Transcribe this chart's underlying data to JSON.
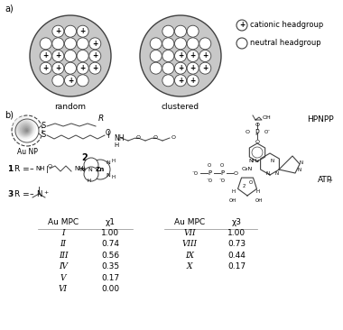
{
  "title_a": "a)",
  "title_b": "b)",
  "random_label": "random",
  "clustered_label": "clustered",
  "legend_cationic": "cationic headgroup",
  "legend_neutral": "neutral headgroup",
  "table_header_left": [
    "Au MPC",
    "χ1"
  ],
  "table_rows_left": [
    [
      "I",
      "1.00"
    ],
    [
      "II",
      "0.74"
    ],
    [
      "III",
      "0.56"
    ],
    [
      "IV",
      "0.35"
    ],
    [
      "V",
      "0.17"
    ],
    [
      "VI",
      "0.00"
    ]
  ],
  "table_header_right": [
    "Au MPC",
    "χ3"
  ],
  "table_rows_right": [
    [
      "VII",
      "1.00"
    ],
    [
      "VIII",
      "0.73"
    ],
    [
      "IX",
      "0.44"
    ],
    [
      "X",
      "0.17"
    ]
  ],
  "au_np_label": "Au NP",
  "compound2_label": "2",
  "hpnpp_label": "HPNPP",
  "atpf_label": "ATP",
  "bg_color": "#ffffff",
  "text_color": "#000000",
  "gray_fill": "#c8c8c8",
  "dark_edge": "#404040",
  "circle_bg": "#ffffff",
  "small_r": 6.5,
  "outer_r": 45
}
